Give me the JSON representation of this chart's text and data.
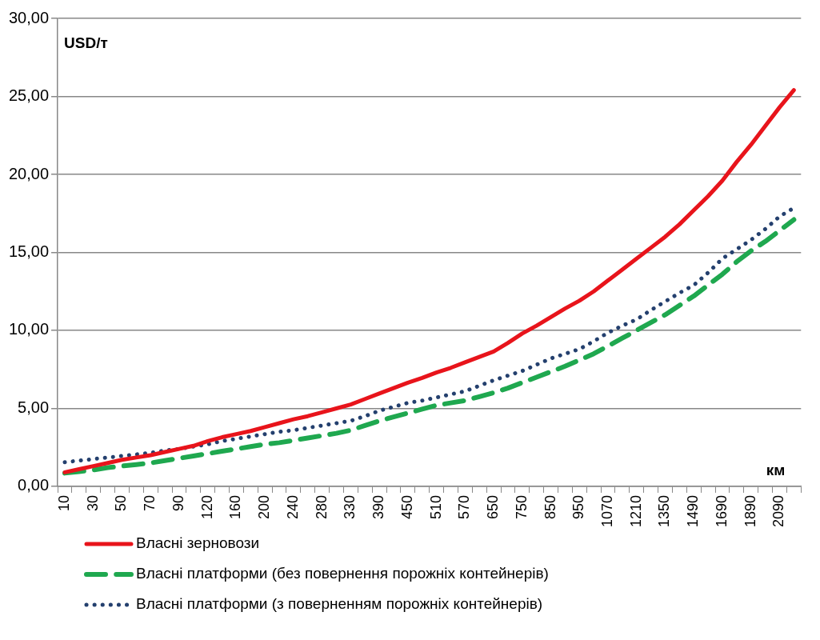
{
  "chart_data": {
    "type": "line",
    "xlabel": "км",
    "ylabel": "USD/т",
    "categories": [
      "10",
      null,
      "30",
      null,
      "50",
      null,
      "70",
      null,
      "90",
      null,
      "120",
      null,
      "160",
      null,
      "200",
      null,
      "240",
      null,
      "280",
      null,
      "330",
      null,
      "390",
      null,
      "450",
      null,
      "510",
      null,
      "570",
      null,
      "650",
      null,
      "750",
      null,
      "850",
      null,
      "950",
      null,
      "1070",
      null,
      "1210",
      null,
      "1350",
      null,
      "1490",
      null,
      "1690",
      null,
      "1890",
      null,
      "2090",
      null
    ],
    "series": [
      {
        "name": "Власні зерновози",
        "color": "#e8141b",
        "line_style": "solid",
        "values": [
          0.9,
          1.1,
          1.3,
          1.5,
          1.7,
          1.85,
          2.0,
          2.2,
          2.4,
          2.6,
          2.9,
          3.15,
          3.35,
          3.55,
          3.8,
          4.05,
          4.3,
          4.5,
          4.75,
          5.0,
          5.25,
          5.6,
          5.95,
          6.3,
          6.65,
          6.95,
          7.3,
          7.6,
          7.95,
          8.3,
          8.65,
          9.2,
          9.8,
          10.3,
          10.85,
          11.4,
          11.9,
          12.5,
          13.2,
          13.9,
          14.6,
          15.3,
          16.0,
          16.8,
          17.7,
          18.6,
          19.6,
          20.8,
          21.9,
          23.1,
          24.3,
          25.4
        ]
      },
      {
        "name": "Власні платформи (без повернення порожніх контейнерів)",
        "color": "#1fa84f",
        "line_style": "dashed",
        "values": [
          0.85,
          0.95,
          1.05,
          1.2,
          1.3,
          1.4,
          1.5,
          1.65,
          1.8,
          1.95,
          2.1,
          2.25,
          2.4,
          2.55,
          2.7,
          2.8,
          2.95,
          3.1,
          3.25,
          3.4,
          3.6,
          3.9,
          4.2,
          4.45,
          4.7,
          4.95,
          5.2,
          5.35,
          5.5,
          5.75,
          6.0,
          6.3,
          6.65,
          7.0,
          7.35,
          7.7,
          8.1,
          8.5,
          9.0,
          9.5,
          10.0,
          10.5,
          11.0,
          11.6,
          12.2,
          12.9,
          13.6,
          14.4,
          15.1,
          15.7,
          16.4,
          17.1
        ]
      },
      {
        "name": "Власні платформи (з поверненням порожніх контейнерів)",
        "color": "#24406e",
        "line_style": "dotted",
        "values": [
          1.55,
          1.65,
          1.75,
          1.85,
          1.95,
          2.05,
          2.15,
          2.3,
          2.4,
          2.55,
          2.7,
          2.9,
          3.05,
          3.2,
          3.35,
          3.5,
          3.6,
          3.75,
          3.9,
          4.05,
          4.2,
          4.5,
          4.85,
          5.1,
          5.35,
          5.5,
          5.7,
          5.9,
          6.1,
          6.45,
          6.8,
          7.1,
          7.4,
          7.8,
          8.2,
          8.5,
          8.8,
          9.3,
          9.85,
          10.3,
          10.7,
          11.3,
          11.85,
          12.4,
          12.9,
          13.7,
          14.6,
          15.2,
          15.8,
          16.5,
          17.3,
          17.85
        ]
      }
    ],
    "ylim": [
      0,
      30
    ],
    "yticks": [
      {
        "value": 0,
        "label": "0,00"
      },
      {
        "value": 5,
        "label": "5,00"
      },
      {
        "value": 10,
        "label": "10,00"
      },
      {
        "value": 15,
        "label": "15,00"
      },
      {
        "value": 20,
        "label": "20,00"
      },
      {
        "value": 25,
        "label": "25,00"
      },
      {
        "value": 30,
        "label": "30,00"
      }
    ],
    "grid": "y",
    "legend": "bottom",
    "marker": "none"
  }
}
